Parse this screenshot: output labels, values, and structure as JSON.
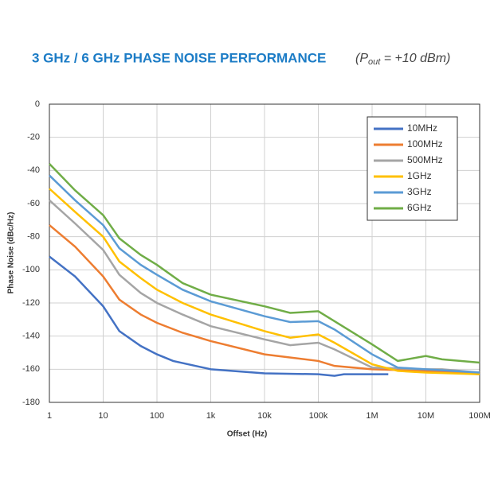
{
  "chart_data": {
    "type": "line",
    "title": "3 GHz / 6 GHz PHASE NOISE PERFORMANCE",
    "subtitle_parts": [
      "(P",
      "out",
      " = +10 dBm)"
    ],
    "x_label": "Offset (Hz)",
    "y_label": "Phase Noise (dBc/Hz)",
    "log_x": true,
    "grid": true,
    "legend": "top-right",
    "xlim": [
      1,
      100000000
    ],
    "xticks": [
      1,
      10,
      100,
      {
        "value": 1000,
        "label": "1k"
      },
      {
        "value": 10000,
        "label": "10k"
      },
      {
        "value": 100000,
        "label": "100k"
      },
      {
        "value": 1000000,
        "label": "1M"
      },
      {
        "value": 10000000,
        "label": "10M"
      },
      {
        "value": 100000000,
        "label": "100M"
      }
    ],
    "ylim": [
      -180,
      0
    ],
    "yticks": [
      0,
      -20,
      -40,
      -60,
      -80,
      -100,
      -120,
      -140,
      -160,
      -180
    ],
    "series": [
      {
        "name": "10MHz",
        "color": "#4472c4",
        "x": [
          1,
          3,
          10,
          20,
          50,
          100,
          200,
          1000,
          10000,
          100000,
          200000,
          300000,
          2000000
        ],
        "values": [
          -92,
          -104,
          -122,
          -137,
          -146,
          -151,
          -155,
          -160,
          -162.5,
          -163,
          -164,
          -163,
          -163
        ]
      },
      {
        "name": "100MHz",
        "color": "#ed7d31",
        "x": [
          1,
          3,
          10,
          20,
          50,
          100,
          300,
          1000,
          10000,
          100000,
          200000,
          1000000,
          10000000,
          100000000
        ],
        "values": [
          -73,
          -86,
          -104,
          -118,
          -127,
          -132,
          -138,
          -143,
          -151,
          -155,
          -158,
          -160,
          -161,
          -163
        ]
      },
      {
        "name": "500MHz",
        "color": "#a5a5a5",
        "x": [
          1,
          3,
          10,
          20,
          50,
          100,
          300,
          1000,
          10000,
          30000,
          100000,
          200000,
          1000000,
          10000000,
          20000000,
          100000000
        ],
        "values": [
          -58,
          -72,
          -88,
          -103,
          -114,
          -120,
          -127,
          -134,
          -142,
          -145.5,
          -144,
          -148,
          -159,
          -160,
          -160,
          -162
        ]
      },
      {
        "name": "1GHz",
        "color": "#ffc000",
        "x": [
          1,
          3,
          10,
          20,
          50,
          100,
          300,
          1000,
          10000,
          30000,
          100000,
          200000,
          1000000,
          3000000,
          10000000,
          100000000
        ],
        "values": [
          -51,
          -65,
          -80,
          -95,
          -105,
          -112,
          -120,
          -127,
          -137,
          -141,
          -139,
          -144,
          -157,
          -161,
          -162,
          -163
        ]
      },
      {
        "name": "3GHz",
        "color": "#5b9bd5",
        "x": [
          1,
          3,
          10,
          20,
          50,
          100,
          300,
          1000,
          10000,
          30000,
          100000,
          200000,
          1000000,
          3000000,
          10000000,
          100000000
        ],
        "values": [
          -43,
          -58,
          -73,
          -87,
          -97,
          -103,
          -112,
          -119,
          -128,
          -131.5,
          -131,
          -136,
          -151,
          -159,
          -160,
          -162
        ]
      },
      {
        "name": "6GHz",
        "color": "#70ad47",
        "x": [
          1,
          3,
          10,
          20,
          50,
          100,
          300,
          1000,
          10000,
          30000,
          100000,
          200000,
          1000000,
          3000000,
          10000000,
          20000000,
          100000000
        ],
        "values": [
          -36,
          -52,
          -67,
          -81,
          -91,
          -97,
          -108,
          -115,
          -122,
          -126,
          -125,
          -131,
          -145,
          -155,
          -152,
          -154,
          -156
        ]
      }
    ]
  }
}
